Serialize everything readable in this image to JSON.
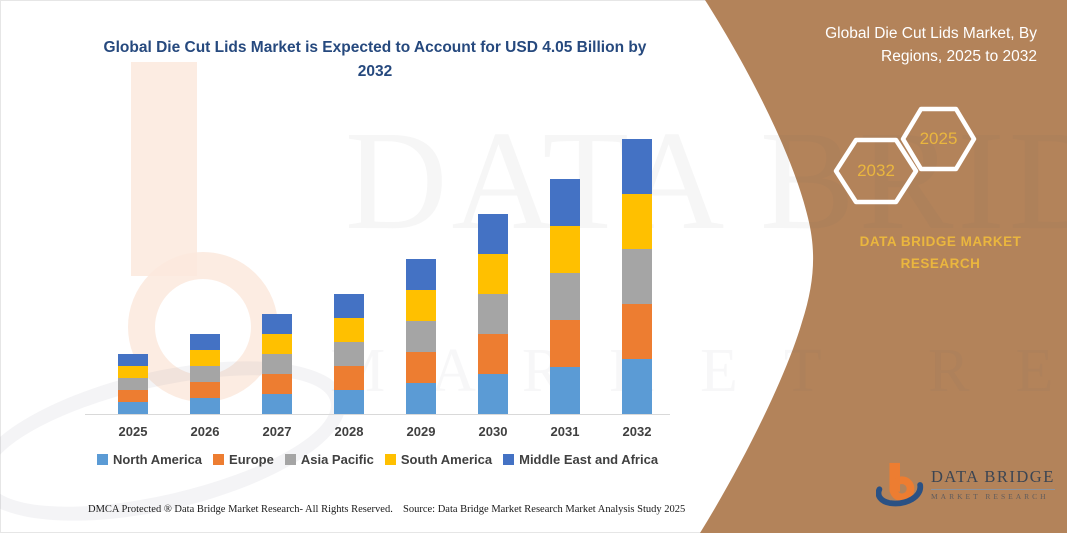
{
  "title": {
    "text": "Global Die Cut Lids Market is Expected to Account for USD 4.05 Billion by 2032",
    "color": "#26497e"
  },
  "side_panel": {
    "background": "#b3835a",
    "title": "Global Die Cut Lids Market, By Regions, 2025 to 2032",
    "hexagons": [
      {
        "label": "2032"
      },
      {
        "label": "2025"
      }
    ],
    "brand": "DATA BRIDGE MARKET RESEARCH",
    "accent_gold": "#eab63e"
  },
  "chart_data": {
    "type": "bar",
    "stacked": true,
    "title": "Global Die Cut Lids Market is Expected to Account for USD 4.05 Billion by 2032",
    "unit": "USD Billion",
    "categories": [
      "2025",
      "2026",
      "2027",
      "2028",
      "2029",
      "2030",
      "2031",
      "2032"
    ],
    "series": [
      {
        "name": "North America",
        "color": "#5b9bd5",
        "values": [
          0.18,
          0.23,
          0.29,
          0.35,
          0.46,
          0.58,
          0.69,
          0.81
        ]
      },
      {
        "name": "Europe",
        "color": "#ed7d31",
        "values": [
          0.18,
          0.23,
          0.29,
          0.35,
          0.46,
          0.58,
          0.69,
          0.81
        ]
      },
      {
        "name": "Asia Pacific",
        "color": "#a5a5a5",
        "values": [
          0.18,
          0.23,
          0.29,
          0.35,
          0.46,
          0.58,
          0.69,
          0.81
        ]
      },
      {
        "name": "South America",
        "color": "#ffc000",
        "values": [
          0.18,
          0.23,
          0.29,
          0.35,
          0.46,
          0.58,
          0.69,
          0.81
        ]
      },
      {
        "name": "Middle East and Africa",
        "color": "#4472c4",
        "values": [
          0.18,
          0.23,
          0.29,
          0.35,
          0.46,
          0.58,
          0.69,
          0.81
        ]
      }
    ],
    "totals_estimated_usd_billion": [
      0.9,
      1.15,
      1.46,
      1.75,
      2.31,
      2.89,
      3.47,
      4.05
    ],
    "annotation": "USD 4.05 Billion by 2032",
    "y_axis": {
      "visible": false,
      "range": [
        0,
        4.6
      ]
    },
    "grid": false,
    "legend_position": "bottom"
  },
  "watermark": {
    "line1": "DATA BRIDGE",
    "line2": "MARKET RESEARCH"
  },
  "footer": {
    "dmca": "DMCA Protected ® Data Bridge Market Research-  All Rights Reserved.",
    "source": "Source: Data Bridge Market Research  Market Analysis Study 2025"
  },
  "logo": {
    "line1": "DATA BRIDGE",
    "line2": "MARKET RESEARCH"
  }
}
